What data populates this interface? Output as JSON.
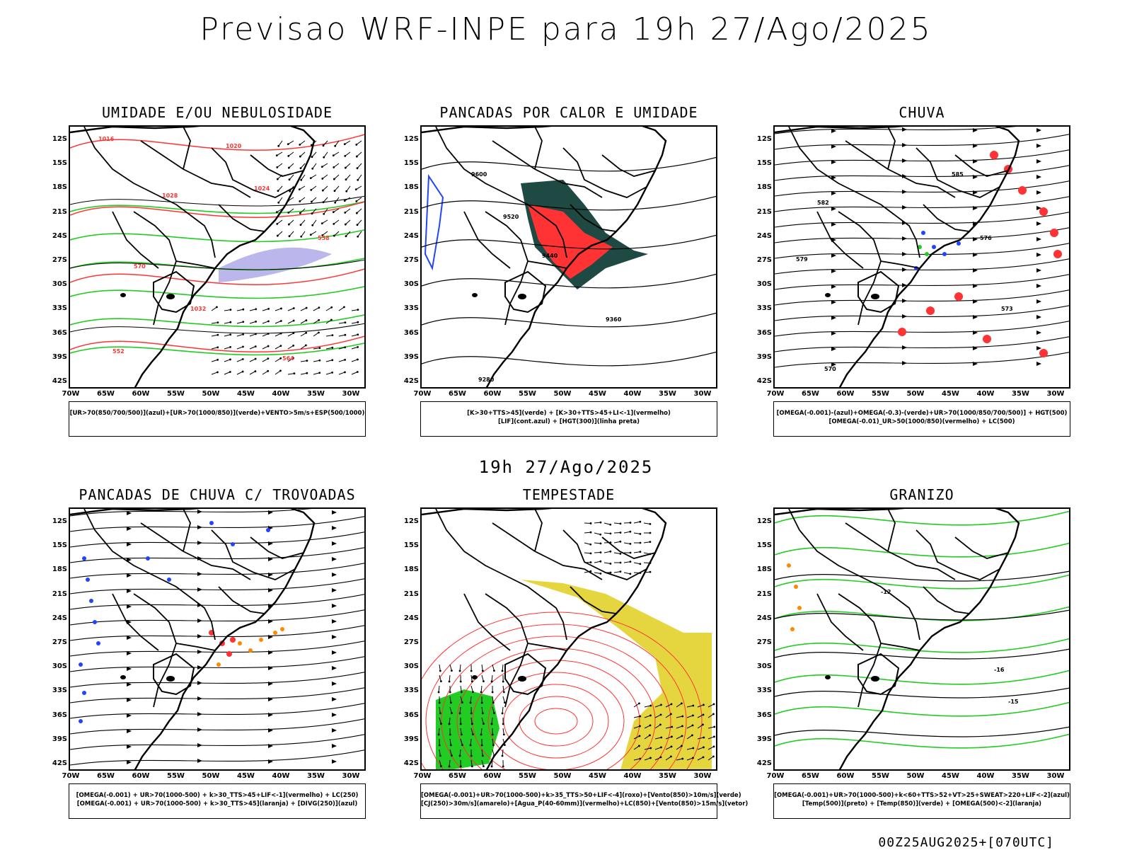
{
  "main_title": "Previsao WRF-INPE  para 19h 27/Ago/2025",
  "mid_date": "19h 27/Ago/2025",
  "run_info": "00Z25AUG2025+[070UTC]",
  "lat_labels": [
    "12S",
    "15S",
    "18S",
    "21S",
    "24S",
    "27S",
    "30S",
    "33S",
    "36S",
    "39S",
    "42S"
  ],
  "lon_labels": [
    "70W",
    "65W",
    "60W",
    "55W",
    "50W",
    "45W",
    "40W",
    "35W",
    "30W"
  ],
  "colors": {
    "green": "#22cc22",
    "red": "#ff3333",
    "blue": "#2244ff",
    "orange": "#ff8800",
    "yellow": "#e5d640",
    "lavender": "#8d86e0",
    "dark_teal": "#1f4a44"
  },
  "panels": [
    {
      "id": "umidade",
      "title": "UMIDADE E/OU NEBULOSIDADE",
      "legend": [
        "[UR>70(850/700/500)](azul)+[UR>70(1000/850)](verde)+VENTO>5m/s+ESP(500/1000)"
      ],
      "contour_labels": [
        "1016",
        "1020",
        "1024",
        "1028",
        "1032",
        "570",
        "564",
        "558",
        "552"
      ]
    },
    {
      "id": "pancadas-calor",
      "title": "PANCADAS POR CALOR E UMIDADE",
      "legend": [
        "[K>30+TTS>45](verde) + [K>30+TTS>45+LI<-1](vermelho)",
        "[LIF](cont.azul) + [HGT(300)](linha preta)"
      ],
      "contour_labels": [
        "9600",
        "9520",
        "9440",
        "9360",
        "9280"
      ]
    },
    {
      "id": "chuva",
      "title": "CHUVA",
      "legend": [
        "[OMEGA(-0.001)-(azul)+OMEGA(-0.3)-(verde)+UR>70(1000/850/700/500)] + HGT(500)",
        "[OMEGA(-0.01)_UR>50(1000/850)(vermelho) + LC(500)"
      ],
      "contour_labels": [
        "585",
        "582",
        "579",
        "576",
        "573",
        "570"
      ]
    },
    {
      "id": "trovoadas",
      "title": "PANCADAS DE CHUVA C/ TROVOADAS",
      "legend": [
        "[OMEGA(-0.001) + UR>70(1000-500) + k>30_TTS>45+LIF<-1](vermelho) + LC(250)",
        "[OMEGA(-0.001) + UR>70(1000-500) + k>30_TTS>45](laranja) + [DIVG(250)](azul)"
      ],
      "contour_labels": []
    },
    {
      "id": "tempestade",
      "title": "TEMPESTADE",
      "legend": [
        "[OMEGA(-0.001)+UR>70(1000-500)+k>35_TTS>50+LIF<-4](roxo)+[Vento(850)>10m/s](verde)",
        "[CJ(250)>30m/s](amarelo)+[Agua_P(40-60mm)](vermelho)+LC(850)+[Vento(850)>15m/s](vetor)"
      ],
      "contour_labels": []
    },
    {
      "id": "granizo",
      "title": "GRANIZO",
      "legend": [
        "[OMEGA(-0.001)+UR>70(1000-500)+k<60+TTS>52+VT>25+SWEAT>220+LIF<-2](azul)",
        "[Temp(500)](preto) + [Temp(850)](verde) + [OMEGA(500)<-2](laranja)"
      ],
      "contour_labels": [
        "-12",
        "-16",
        "-15"
      ]
    }
  ]
}
